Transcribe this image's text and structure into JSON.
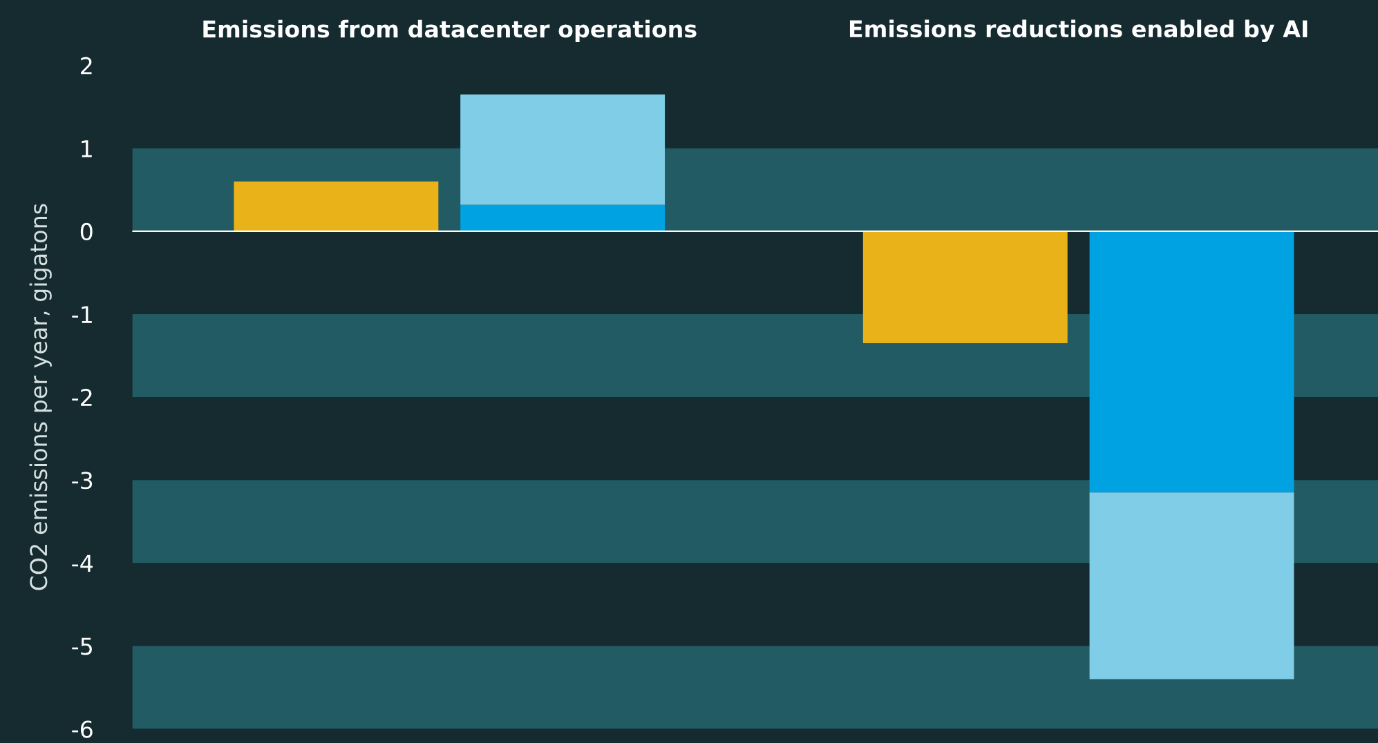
{
  "chart_data": {
    "type": "bar",
    "categories": [
      null,
      null,
      null,
      null
    ],
    "stacked": true,
    "annotations": [
      "Emissions from datacenter operations",
      "Emissions reductions enabled by AI"
    ],
    "ylabel": "CO2 emissions per year, gigatons",
    "series": [
      {
        "color": "#e8b218",
        "values": [
          0.6,
          null,
          -1.35,
          null
        ]
      },
      {
        "color": "#00a2e1",
        "values": [
          null,
          0.32,
          null,
          -3.15
        ]
      },
      {
        "color": "#7fcde6",
        "values": [
          null,
          1.33,
          null,
          -2.25
        ]
      }
    ],
    "ylim": [
      -6,
      2
    ],
    "yticks": [
      -6,
      -5,
      -4,
      -3,
      -2,
      -1,
      0,
      1,
      2
    ],
    "bands": [
      {
        "axis": "y",
        "from": 0,
        "to": 1,
        "color": "#225b63"
      },
      {
        "axis": "y",
        "from": -2,
        "to": -1,
        "color": "#225b63"
      },
      {
        "axis": "y",
        "from": -4,
        "to": -3,
        "color": "#225b63"
      },
      {
        "axis": "y",
        "from": -6,
        "to": -5,
        "color": "#225b63"
      }
    ],
    "ref_lines": [
      {
        "axis": "y",
        "value": 0,
        "color": "#ffffff"
      }
    ],
    "grid": false,
    "legend": false
  }
}
